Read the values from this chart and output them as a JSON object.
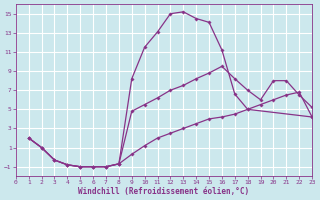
{
  "xlabel": "Windchill (Refroidissement éolien,°C)",
  "background_color": "#cce8ed",
  "grid_color": "#ffffff",
  "line_color": "#883388",
  "xlim": [
    0,
    23
  ],
  "ylim": [
    -2,
    16
  ],
  "xticks": [
    0,
    1,
    2,
    3,
    4,
    5,
    6,
    7,
    8,
    9,
    10,
    11,
    12,
    13,
    14,
    15,
    16,
    17,
    18,
    19,
    20,
    21,
    22,
    23
  ],
  "yticks": [
    -1,
    1,
    3,
    5,
    7,
    9,
    11,
    13,
    15
  ],
  "line1_x": [
    1,
    2,
    3,
    4,
    5,
    6,
    7,
    8,
    9,
    10,
    11,
    12,
    13,
    14,
    15,
    16,
    17,
    18,
    23
  ],
  "line1_y": [
    2,
    1,
    -0.3,
    -0.8,
    -1.0,
    -1.0,
    -1.0,
    -0.7,
    8.2,
    11.5,
    13.1,
    15.0,
    15.2,
    14.5,
    14.1,
    11.2,
    6.6,
    5.0,
    4.2
  ],
  "line2_x": [
    1,
    2,
    3,
    4,
    5,
    6,
    7,
    8,
    9,
    10,
    11,
    12,
    13,
    14,
    15,
    16,
    17,
    18,
    19,
    20,
    21,
    22,
    23
  ],
  "line2_y": [
    2,
    1,
    -0.3,
    -0.8,
    -1.0,
    -1.0,
    -1.0,
    -0.7,
    4.8,
    5.5,
    6.2,
    7.0,
    7.5,
    8.2,
    8.8,
    9.5,
    8.2,
    7.0,
    6.0,
    8.0,
    8.0,
    6.5,
    5.2
  ],
  "line3_x": [
    1,
    2,
    3,
    4,
    5,
    6,
    7,
    8,
    9,
    10,
    11,
    12,
    13,
    14,
    15,
    16,
    17,
    18,
    19,
    20,
    21,
    22,
    23
  ],
  "line3_y": [
    2,
    1,
    -0.3,
    -0.8,
    -1.0,
    -1.0,
    -1.0,
    -0.7,
    0.3,
    1.2,
    2.0,
    2.5,
    3.0,
    3.5,
    4.0,
    4.2,
    4.5,
    5.0,
    5.5,
    6.0,
    6.5,
    6.8,
    4.2
  ]
}
